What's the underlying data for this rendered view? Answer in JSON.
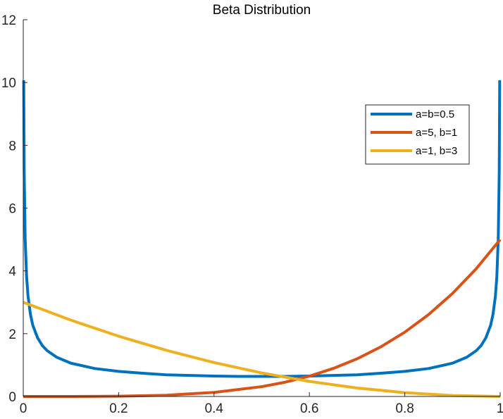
{
  "chart_data": {
    "type": "line",
    "title": "Beta Distribution",
    "xlabel": "",
    "ylabel": "",
    "xlim": [
      0,
      1
    ],
    "ylim": [
      0,
      12
    ],
    "xticks": [
      0,
      0.2,
      0.4,
      0.6,
      0.8,
      1
    ],
    "xtick_labels": [
      "0",
      "0.2",
      "0.4",
      "0.6",
      "0.8",
      "1"
    ],
    "yticks": [
      0,
      2,
      4,
      6,
      8,
      10,
      12
    ],
    "ytick_labels": [
      "0",
      "2",
      "4",
      "6",
      "8",
      "10",
      "12"
    ],
    "grid": false,
    "legend_position": "top-right",
    "series": [
      {
        "name": "a=b=0.5",
        "color": "#0072BD",
        "x": [
          0.001,
          0.002,
          0.004,
          0.007,
          0.01,
          0.015,
          0.02,
          0.03,
          0.04,
          0.05,
          0.07,
          0.1,
          0.15,
          0.2,
          0.25,
          0.3,
          0.35,
          0.4,
          0.45,
          0.5,
          0.55,
          0.6,
          0.65,
          0.7,
          0.75,
          0.8,
          0.85,
          0.9,
          0.93,
          0.95,
          0.96,
          0.97,
          0.98,
          0.985,
          0.99,
          0.993,
          0.996,
          0.998,
          0.999
        ],
        "y": [
          10.07,
          7.12,
          5.04,
          3.82,
          3.2,
          2.62,
          2.27,
          1.87,
          1.62,
          1.46,
          1.25,
          1.06,
          0.89,
          0.8,
          0.74,
          0.69,
          0.67,
          0.65,
          0.64,
          0.64,
          0.64,
          0.65,
          0.67,
          0.69,
          0.74,
          0.8,
          0.89,
          1.06,
          1.25,
          1.46,
          1.62,
          1.87,
          2.27,
          2.62,
          3.2,
          3.82,
          5.04,
          7.12,
          10.07
        ]
      },
      {
        "name": "a=5, b=1",
        "color": "#D95319",
        "x": [
          0,
          0.1,
          0.2,
          0.3,
          0.4,
          0.5,
          0.55,
          0.6,
          0.65,
          0.7,
          0.75,
          0.8,
          0.85,
          0.9,
          0.95,
          1
        ],
        "y": [
          0,
          0.0005,
          0.008,
          0.0405,
          0.128,
          0.3125,
          0.4575,
          0.648,
          0.8925,
          1.2005,
          1.582,
          2.048,
          2.61,
          3.2805,
          4.0725,
          5.0
        ]
      },
      {
        "name": "a=1, b=3",
        "color": "#EDB120",
        "x": [
          0,
          0.1,
          0.2,
          0.3,
          0.4,
          0.5,
          0.6,
          0.7,
          0.8,
          0.9,
          1
        ],
        "y": [
          3.0,
          2.43,
          1.92,
          1.47,
          1.08,
          0.75,
          0.48,
          0.27,
          0.12,
          0.03,
          0
        ]
      }
    ]
  }
}
